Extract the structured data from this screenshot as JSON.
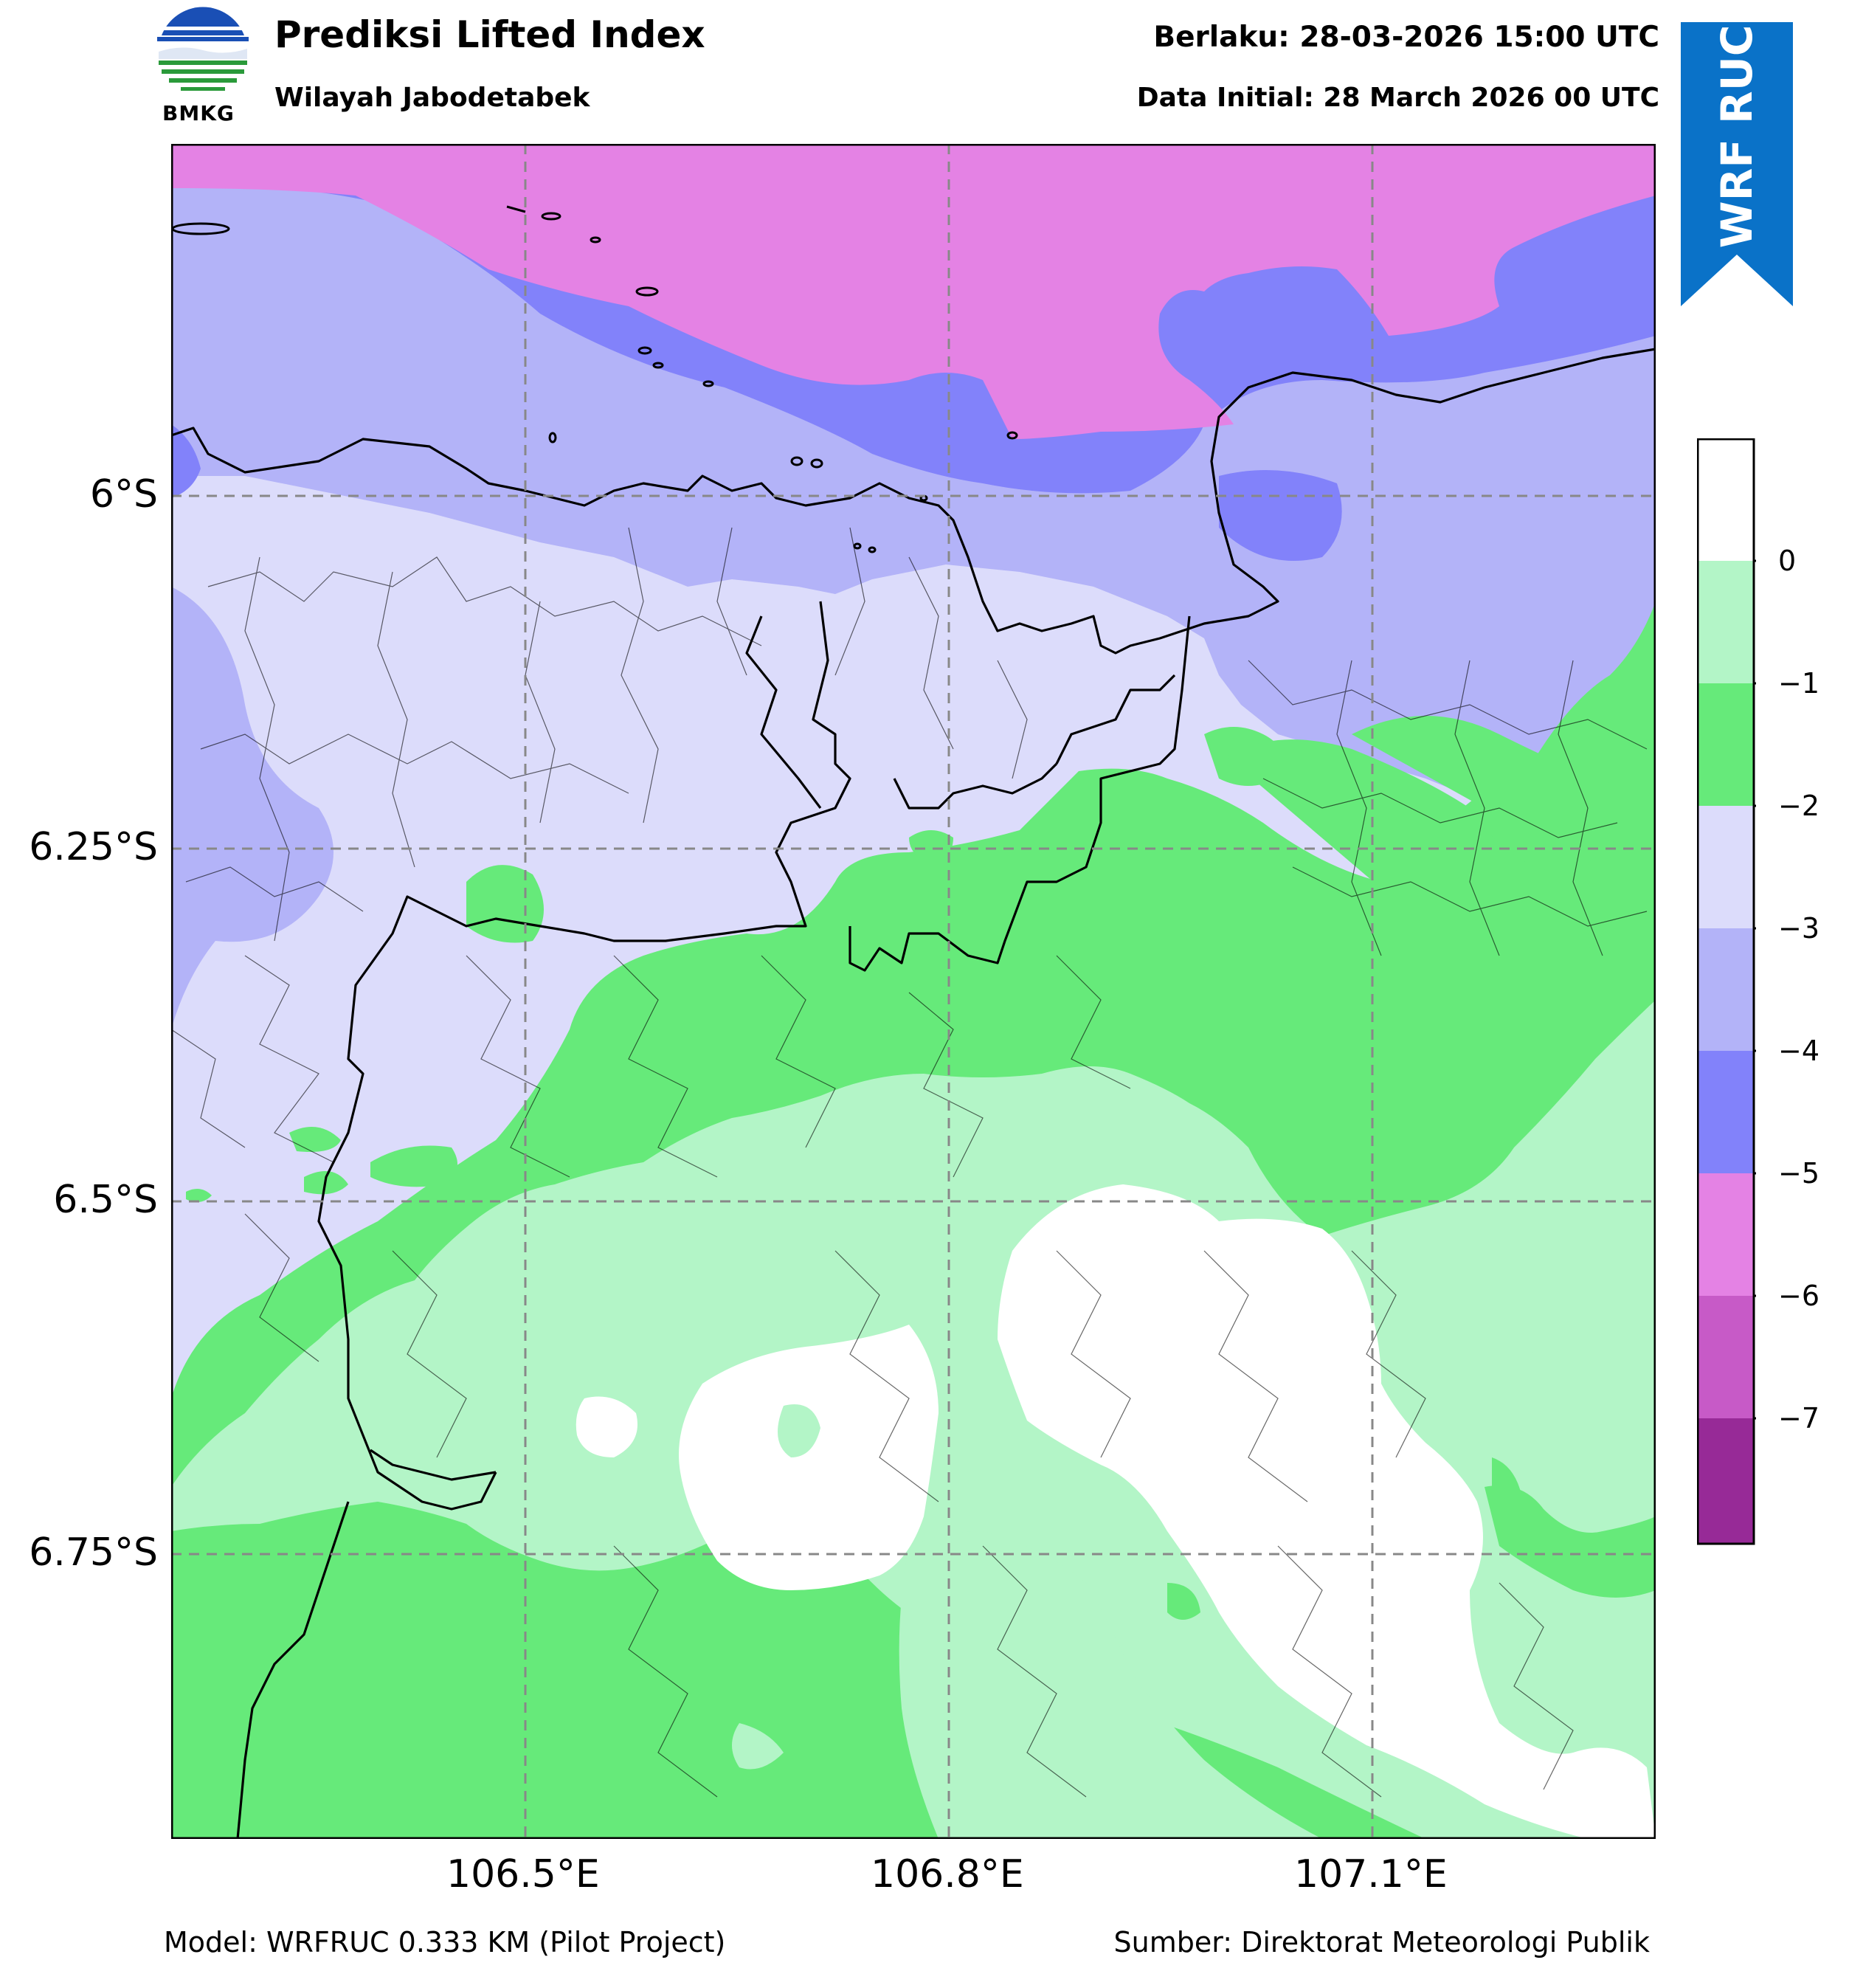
{
  "header": {
    "title": "Prediksi Lifted Index",
    "subtitle": "Wilayah Jabodetabek",
    "valid_time": "Berlaku: 28-03-2026 15:00 UTC",
    "init_time": "Data Initial: 28 March 2026 00 UTC",
    "logo_label": "BMKG",
    "badge": "WRF RUC"
  },
  "map": {
    "lon_ticks": [
      "106.5°E",
      "106.8°E",
      "107.1°E"
    ],
    "lat_ticks": [
      "6°S",
      "6.25°S",
      "6.5°S",
      "6.75°S"
    ],
    "colorbar": {
      "ticks": [
        "0",
        "−1",
        "−2",
        "−3",
        "−4",
        "−5",
        "−6",
        "−7"
      ],
      "colors": [
        "#ffffff",
        "#b3f5c7",
        "#66ea7a",
        "#dcdcfb",
        "#b3b3f8",
        "#8282fa",
        "#e482e4",
        "#c75ac7",
        "#972a97"
      ]
    },
    "colors": {
      "li_0": "#ffffff",
      "li_m1": "#b3f5c7",
      "li_m2": "#66ea7a",
      "li_m3": "#dcdcfb",
      "li_m4": "#b3b3f8",
      "li_m5": "#8282fa",
      "li_m6": "#e482e4"
    }
  },
  "footer": {
    "model": "Model: WRFRUC 0.333 KM (Pilot Project)",
    "source": "Sumber: Direktorat Meteorologi Publik"
  },
  "branding": {
    "ribbon_color": "#0a72c8"
  }
}
